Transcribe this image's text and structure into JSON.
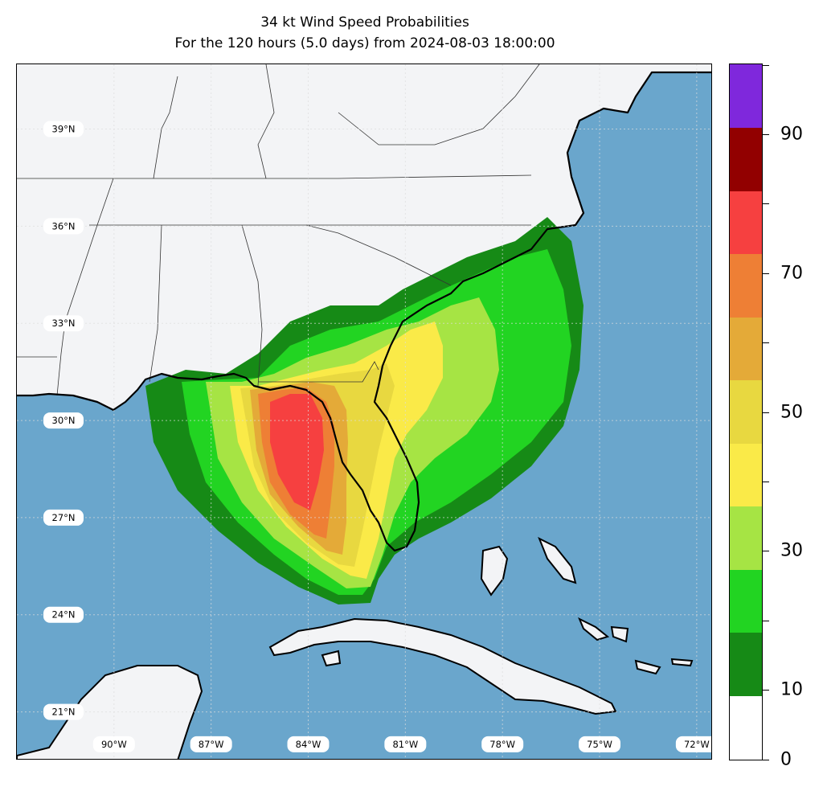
{
  "title": {
    "line1": "34 kt Wind Speed Probabilities",
    "line2": "For the 120 hours (5.0 days) from 2024-08-03 18:00:00"
  },
  "map": {
    "extent": {
      "lon": [
        -93,
        -71.5
      ],
      "lat": [
        19.5,
        41
      ]
    },
    "lat_labels": [
      "39°N",
      "36°N",
      "33°N",
      "30°N",
      "27°N",
      "24°N",
      "21°N"
    ],
    "lon_labels": [
      "90°W",
      "87°W",
      "84°W",
      "81°W",
      "78°W",
      "75°W",
      "72°W"
    ],
    "colors": {
      "ocean": "#6aa6cc",
      "land": "#f3f4f6",
      "coast": "#000000",
      "borders": "#333333"
    }
  },
  "colorbar": {
    "levels": [
      0,
      10,
      20,
      30,
      40,
      50,
      60,
      70,
      80,
      90,
      100
    ],
    "colors": [
      "#ffffff",
      "#168a16",
      "#22d422",
      "#a6e444",
      "#faea48",
      "#e8d840",
      "#e4aa38",
      "#ee7f35",
      "#f64040",
      "#920000",
      "#7f28dc"
    ],
    "tick_labels": [
      "0",
      "10",
      "30",
      "50",
      "70",
      "90"
    ]
  },
  "probability_zones": [
    {
      "level": 10,
      "color": "#168a16"
    },
    {
      "level": 20,
      "color": "#22d422"
    },
    {
      "level": 30,
      "color": "#a6e444"
    },
    {
      "level": 40,
      "color": "#faea48"
    },
    {
      "level": 50,
      "color": "#e8d840"
    },
    {
      "level": 60,
      "color": "#e4aa38"
    },
    {
      "level": 70,
      "color": "#ee7f35"
    },
    {
      "level": 80,
      "color": "#f64040"
    }
  ]
}
